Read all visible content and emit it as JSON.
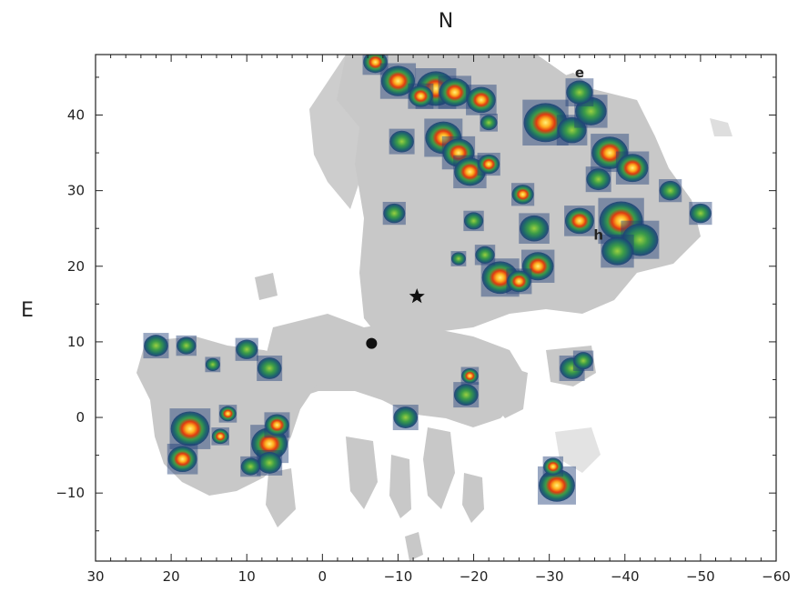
{
  "chart_data": {
    "type": "scatter",
    "title": "N",
    "xlabel": "",
    "ylabel": "E",
    "xlim": [
      30,
      -60
    ],
    "ylim": [
      -19,
      48
    ],
    "x_ticks": [
      30,
      20,
      10,
      0,
      -10,
      -20,
      -30,
      -40,
      -50,
      -60
    ],
    "x_tick_labels": [
      "30",
      "20",
      "10",
      "0",
      "−10",
      "−20",
      "−30",
      "−40",
      "−50",
      "−60"
    ],
    "y_ticks": [
      -10,
      0,
      10,
      20,
      30,
      40
    ],
    "y_tick_labels": [
      "−10",
      "0",
      "10",
      "20",
      "30",
      "40"
    ],
    "grid": false,
    "colors": {
      "background_region": "#c8c8c8",
      "emission_low": "#1f3f78",
      "emission_mid": "#3a9a4a",
      "emission_high": "#e04010",
      "emission_peak": "#ffe860"
    },
    "markers": [
      {
        "kind": "star",
        "x": -12.5,
        "y": 16
      },
      {
        "kind": "circle",
        "x": -6.5,
        "y": 9.8
      }
    ],
    "annotations": [
      {
        "text": "e",
        "x": -34,
        "y": 45
      },
      {
        "text": "h",
        "x": -36.5,
        "y": 23.5
      }
    ],
    "clumps": [
      {
        "x": -7,
        "y": 47,
        "s": 1.0,
        "i": 0.9
      },
      {
        "x": -10,
        "y": 44.5,
        "s": 1.4,
        "i": 0.6
      },
      {
        "x": -15,
        "y": 43.5,
        "s": 1.6,
        "i": 0.95
      },
      {
        "x": -17.5,
        "y": 43,
        "s": 1.3,
        "i": 0.8
      },
      {
        "x": -21,
        "y": 42,
        "s": 1.2,
        "i": 0.7
      },
      {
        "x": -13,
        "y": 42.5,
        "s": 1.0,
        "i": 0.7
      },
      {
        "x": -10.5,
        "y": 36.5,
        "s": 1.0,
        "i": 0.45
      },
      {
        "x": -16,
        "y": 37,
        "s": 1.5,
        "i": 0.8
      },
      {
        "x": -18,
        "y": 35,
        "s": 1.3,
        "i": 0.85
      },
      {
        "x": -19.5,
        "y": 32.5,
        "s": 1.3,
        "i": 0.95
      },
      {
        "x": -22,
        "y": 33.5,
        "s": 0.9,
        "i": 0.75
      },
      {
        "x": -22,
        "y": 39,
        "s": 0.7,
        "i": 0.55
      },
      {
        "x": -29.5,
        "y": 39,
        "s": 1.8,
        "i": 0.7
      },
      {
        "x": -33,
        "y": 38,
        "s": 1.2,
        "i": 0.5
      },
      {
        "x": -35.5,
        "y": 40.5,
        "s": 1.3,
        "i": 0.45
      },
      {
        "x": -34,
        "y": 43,
        "s": 1.1,
        "i": 0.3
      },
      {
        "x": -38,
        "y": 35,
        "s": 1.5,
        "i": 0.7
      },
      {
        "x": -41,
        "y": 33,
        "s": 1.3,
        "i": 0.65
      },
      {
        "x": -36.5,
        "y": 31.5,
        "s": 1.0,
        "i": 0.5
      },
      {
        "x": -46,
        "y": 30,
        "s": 0.9,
        "i": 0.3
      },
      {
        "x": -50,
        "y": 27,
        "s": 0.9,
        "i": 0.3
      },
      {
        "x": -39.5,
        "y": 26,
        "s": 1.8,
        "i": 0.75
      },
      {
        "x": -42,
        "y": 23.5,
        "s": 1.5,
        "i": 0.55
      },
      {
        "x": -39,
        "y": 22,
        "s": 1.3,
        "i": 0.45
      },
      {
        "x": -34,
        "y": 26,
        "s": 1.2,
        "i": 0.7
      },
      {
        "x": -28,
        "y": 25,
        "s": 1.2,
        "i": 0.55
      },
      {
        "x": -26.5,
        "y": 29.5,
        "s": 0.9,
        "i": 0.85
      },
      {
        "x": -20,
        "y": 26,
        "s": 0.8,
        "i": 0.45
      },
      {
        "x": -9.5,
        "y": 27,
        "s": 0.9,
        "i": 0.4
      },
      {
        "x": -23.5,
        "y": 18.5,
        "s": 1.5,
        "i": 0.95
      },
      {
        "x": -28.5,
        "y": 20,
        "s": 1.3,
        "i": 0.85
      },
      {
        "x": -26,
        "y": 18,
        "s": 1.0,
        "i": 0.7
      },
      {
        "x": -21.5,
        "y": 21.5,
        "s": 0.8,
        "i": 0.5
      },
      {
        "x": -18,
        "y": 21,
        "s": 0.6,
        "i": 0.4
      },
      {
        "x": -33,
        "y": 6.5,
        "s": 1.0,
        "i": 0.35
      },
      {
        "x": -34.5,
        "y": 7.5,
        "s": 0.8,
        "i": 0.3
      },
      {
        "x": -19,
        "y": 3,
        "s": 1.0,
        "i": 0.5
      },
      {
        "x": -19.5,
        "y": 5.5,
        "s": 0.7,
        "i": 0.6
      },
      {
        "x": -11,
        "y": 0,
        "s": 1.0,
        "i": 0.35
      },
      {
        "x": -31,
        "y": -9,
        "s": 1.5,
        "i": 0.9
      },
      {
        "x": -30.5,
        "y": -6.5,
        "s": 0.8,
        "i": 0.6
      },
      {
        "x": 22,
        "y": 9.5,
        "s": 1.0,
        "i": 0.3
      },
      {
        "x": 18,
        "y": 9.5,
        "s": 0.8,
        "i": 0.3
      },
      {
        "x": 14.5,
        "y": 7,
        "s": 0.6,
        "i": 0.3
      },
      {
        "x": 10,
        "y": 9,
        "s": 0.9,
        "i": 0.35
      },
      {
        "x": 7,
        "y": 6.5,
        "s": 1.0,
        "i": 0.35
      },
      {
        "x": 17.5,
        "y": -1.5,
        "s": 1.6,
        "i": 0.85
      },
      {
        "x": 18.5,
        "y": -5.5,
        "s": 1.2,
        "i": 0.95
      },
      {
        "x": 12.5,
        "y": 0.5,
        "s": 0.7,
        "i": 0.7
      },
      {
        "x": 13.5,
        "y": -2.5,
        "s": 0.7,
        "i": 0.6
      },
      {
        "x": 7,
        "y": -3.5,
        "s": 1.5,
        "i": 0.8
      },
      {
        "x": 6,
        "y": -1,
        "s": 1.0,
        "i": 0.7
      },
      {
        "x": 7,
        "y": -6,
        "s": 1.0,
        "i": 0.5
      },
      {
        "x": 9.5,
        "y": -6.5,
        "s": 0.8,
        "i": 0.4
      }
    ]
  }
}
